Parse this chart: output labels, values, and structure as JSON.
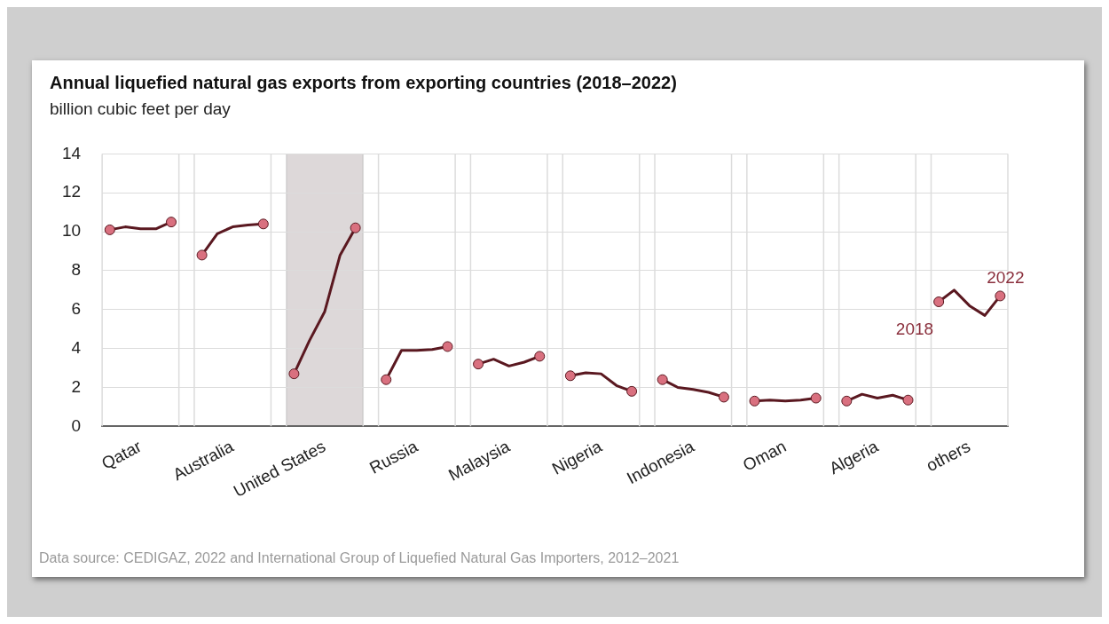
{
  "chart_data": {
    "type": "line",
    "title": "Annual liquefied natural gas exports from exporting countries (2018–2022)",
    "subtitle": "billion cubic feet per day",
    "annotations": [
      "2018",
      "2022",
      "Data source: CEDIGAZ, 2022 and International Group of Liquefied Natural Gas Importers, 2012–2021"
    ],
    "categories": [
      null,
      null,
      "Qatar",
      null,
      null,
      null,
      null,
      null,
      "Australia",
      null,
      null,
      null,
      null,
      null,
      "United States",
      null,
      null,
      null,
      null,
      null,
      "Russia",
      null,
      null,
      null,
      null,
      null,
      "Malaysia",
      null,
      null,
      null,
      null,
      null,
      "Nigeria",
      null,
      null,
      null,
      null,
      null,
      "Indonesia",
      null,
      null,
      null,
      null,
      null,
      "Oman",
      null,
      null,
      null,
      null,
      null,
      "Algeria",
      null,
      null,
      null,
      null,
      null,
      "others",
      null,
      null
    ],
    "ylim": [
      0,
      14
    ],
    "yticks": [
      0,
      2,
      4,
      6,
      8,
      10,
      12,
      14
    ],
    "grid": "y",
    "series": [
      {
        "color": "#5a1820",
        "values": [
          10.1,
          10.25,
          10.15,
          10.15,
          10.5,
          null,
          null,
          null,
          null,
          null,
          null,
          null,
          null,
          null,
          null,
          null,
          null,
          null,
          null,
          null,
          null,
          null,
          null,
          null,
          null,
          null,
          null,
          null,
          null,
          null,
          null,
          null,
          null,
          null,
          null,
          null,
          null,
          null,
          null,
          null,
          null,
          null,
          null,
          null,
          null,
          null,
          null,
          null,
          null,
          null,
          null,
          null,
          null,
          null,
          null,
          null,
          null,
          null,
          null
        ]
      },
      {
        "color": "#5a1820",
        "values": [
          null,
          null,
          null,
          null,
          null,
          null,
          8.8,
          9.9,
          10.25,
          10.35,
          10.4,
          null,
          null,
          null,
          null,
          null,
          null,
          null,
          null,
          null,
          null,
          null,
          null,
          null,
          null,
          null,
          null,
          null,
          null,
          null,
          null,
          null,
          null,
          null,
          null,
          null,
          null,
          null,
          null,
          null,
          null,
          null,
          null,
          null,
          null,
          null,
          null,
          null,
          null,
          null,
          null,
          null,
          null,
          null,
          null,
          null,
          null,
          null,
          null
        ]
      },
      {
        "color": "#5a1820",
        "values": [
          null,
          null,
          null,
          null,
          null,
          null,
          null,
          null,
          null,
          null,
          null,
          null,
          2.7,
          4.4,
          5.9,
          8.8,
          10.2,
          null,
          null,
          null,
          null,
          null,
          null,
          null,
          null,
          null,
          null,
          null,
          null,
          null,
          null,
          null,
          null,
          null,
          null,
          null,
          null,
          null,
          null,
          null,
          null,
          null,
          null,
          null,
          null,
          null,
          null,
          null,
          null,
          null,
          null,
          null,
          null,
          null,
          null,
          null,
          null,
          null,
          null
        ]
      },
      {
        "color": "#5a1820",
        "values": [
          null,
          null,
          null,
          null,
          null,
          null,
          null,
          null,
          null,
          null,
          null,
          null,
          null,
          null,
          null,
          null,
          null,
          null,
          2.4,
          3.9,
          3.9,
          3.95,
          4.1,
          null,
          null,
          null,
          null,
          null,
          null,
          null,
          null,
          null,
          null,
          null,
          null,
          null,
          null,
          null,
          null,
          null,
          null,
          null,
          null,
          null,
          null,
          null,
          null,
          null,
          null,
          null,
          null,
          null,
          null,
          null,
          null,
          null,
          null,
          null,
          null
        ]
      },
      {
        "color": "#5a1820",
        "values": [
          null,
          null,
          null,
          null,
          null,
          null,
          null,
          null,
          null,
          null,
          null,
          null,
          null,
          null,
          null,
          null,
          null,
          null,
          null,
          null,
          null,
          null,
          null,
          null,
          3.2,
          3.45,
          3.1,
          3.3,
          3.6,
          null,
          null,
          null,
          null,
          null,
          null,
          null,
          null,
          null,
          null,
          null,
          null,
          null,
          null,
          null,
          null,
          null,
          null,
          null,
          null,
          null,
          null,
          null,
          null,
          null,
          null,
          null,
          null,
          null,
          null
        ]
      },
      {
        "color": "#5a1820",
        "values": [
          null,
          null,
          null,
          null,
          null,
          null,
          null,
          null,
          null,
          null,
          null,
          null,
          null,
          null,
          null,
          null,
          null,
          null,
          null,
          null,
          null,
          null,
          null,
          null,
          null,
          null,
          null,
          null,
          null,
          null,
          2.6,
          2.75,
          2.7,
          2.1,
          1.8,
          null,
          null,
          null,
          null,
          null,
          null,
          null,
          null,
          null,
          null,
          null,
          null,
          null,
          null,
          null,
          null,
          null,
          null,
          null,
          null,
          null,
          null,
          null,
          null
        ]
      },
      {
        "color": "#5a1820",
        "values": [
          null,
          null,
          null,
          null,
          null,
          null,
          null,
          null,
          null,
          null,
          null,
          null,
          null,
          null,
          null,
          null,
          null,
          null,
          null,
          null,
          null,
          null,
          null,
          null,
          null,
          null,
          null,
          null,
          null,
          null,
          null,
          null,
          null,
          null,
          null,
          null,
          2.4,
          2.0,
          1.9,
          1.75,
          1.5,
          null,
          null,
          null,
          null,
          null,
          null,
          null,
          null,
          null,
          null,
          null,
          null,
          null,
          null,
          null,
          null,
          null,
          null
        ]
      },
      {
        "color": "#5a1820",
        "values": [
          null,
          null,
          null,
          null,
          null,
          null,
          null,
          null,
          null,
          null,
          null,
          null,
          null,
          null,
          null,
          null,
          null,
          null,
          null,
          null,
          null,
          null,
          null,
          null,
          null,
          null,
          null,
          null,
          null,
          null,
          null,
          null,
          null,
          null,
          null,
          null,
          null,
          null,
          null,
          null,
          null,
          null,
          1.3,
          1.35,
          1.3,
          1.35,
          1.45,
          null,
          null,
          null,
          null,
          null,
          null,
          null,
          null,
          null,
          null,
          null,
          null
        ]
      },
      {
        "color": "#5a1820",
        "values": [
          null,
          null,
          null,
          null,
          null,
          null,
          null,
          null,
          null,
          null,
          null,
          null,
          null,
          null,
          null,
          null,
          null,
          null,
          null,
          null,
          null,
          null,
          null,
          null,
          null,
          null,
          null,
          null,
          null,
          null,
          null,
          null,
          null,
          null,
          null,
          null,
          null,
          null,
          null,
          null,
          null,
          null,
          null,
          null,
          null,
          null,
          null,
          null,
          1.3,
          1.65,
          1.45,
          1.6,
          1.35,
          null,
          null,
          null,
          null,
          null,
          null
        ]
      },
      {
        "color": "#5a1820",
        "values": [
          null,
          null,
          null,
          null,
          null,
          null,
          null,
          null,
          null,
          null,
          null,
          null,
          null,
          null,
          null,
          null,
          null,
          null,
          null,
          null,
          null,
          null,
          null,
          null,
          null,
          null,
          null,
          null,
          null,
          null,
          null,
          null,
          null,
          null,
          null,
          null,
          null,
          null,
          null,
          null,
          null,
          null,
          null,
          null,
          null,
          null,
          null,
          null,
          null,
          null,
          null,
          null,
          null,
          null,
          6.4,
          7.0,
          6.2,
          5.7,
          6.7
        ]
      }
    ]
  }
}
